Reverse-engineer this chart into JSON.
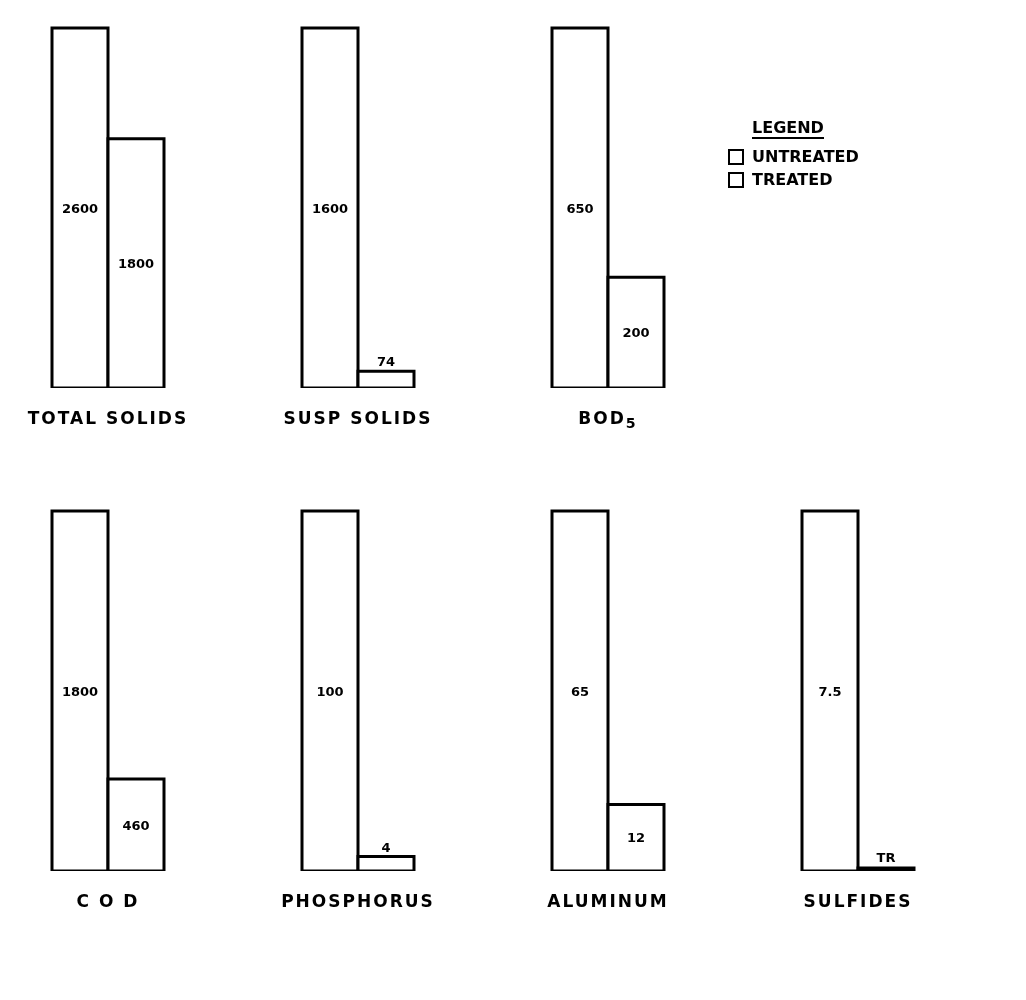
{
  "chart_data": [
    {
      "type": "bar",
      "xlabel": "TOTAL SOLIDS",
      "categories": [
        null
      ],
      "data_labels": true,
      "series": [
        {
          "color": "#ffffff",
          "values": [
            2600
          ]
        },
        {
          "color": "#ffffff",
          "values": [
            1800
          ]
        }
      ]
    },
    {
      "type": "bar",
      "xlabel": "SUSP SOLIDS",
      "categories": [
        null
      ],
      "data_labels": true,
      "series": [
        {
          "color": "#ffffff",
          "values": [
            1600
          ]
        },
        {
          "color": "#ffffff",
          "values": [
            74
          ]
        }
      ]
    },
    {
      "type": "bar",
      "xlabel": "BOD$_{5}$",
      "categories": [
        null
      ],
      "data_labels": true,
      "legend": "right",
      "legend_title": "LEGEND",
      "series": [
        {
          "name": "UNTREATED",
          "color": "#ffffff",
          "values": [
            650
          ]
        },
        {
          "name": "TREATED",
          "color": "#ffffff",
          "values": [
            200
          ]
        }
      ]
    },
    {
      "type": "bar",
      "xlabel": "C O D",
      "categories": [
        null
      ],
      "data_labels": true,
      "series": [
        {
          "color": "#ffffff",
          "values": [
            1800
          ]
        },
        {
          "color": "#ffffff",
          "values": [
            460
          ]
        }
      ]
    },
    {
      "type": "bar",
      "xlabel": "PHOSPHORUS",
      "categories": [
        null
      ],
      "data_labels": true,
      "series": [
        {
          "color": "#ffffff",
          "values": [
            100
          ]
        },
        {
          "color": "#ffffff",
          "values": [
            4
          ]
        }
      ]
    },
    {
      "type": "bar",
      "xlabel": "ALUMINUM",
      "categories": [
        null
      ],
      "data_labels": true,
      "series": [
        {
          "color": "#ffffff",
          "values": [
            65
          ]
        },
        {
          "color": "#ffffff",
          "values": [
            12
          ]
        }
      ]
    },
    {
      "type": "bar",
      "xlabel": "SULFIDES",
      "categories": [
        null
      ],
      "series": [
        {
          "color": "#ffffff",
          "values": [
            7.5
          ],
          "value_labels": [
            "7.5"
          ]
        },
        {
          "color": "#ffffff",
          "values": [
            0
          ],
          "value_labels": [
            "TR"
          ]
        }
      ]
    }
  ]
}
